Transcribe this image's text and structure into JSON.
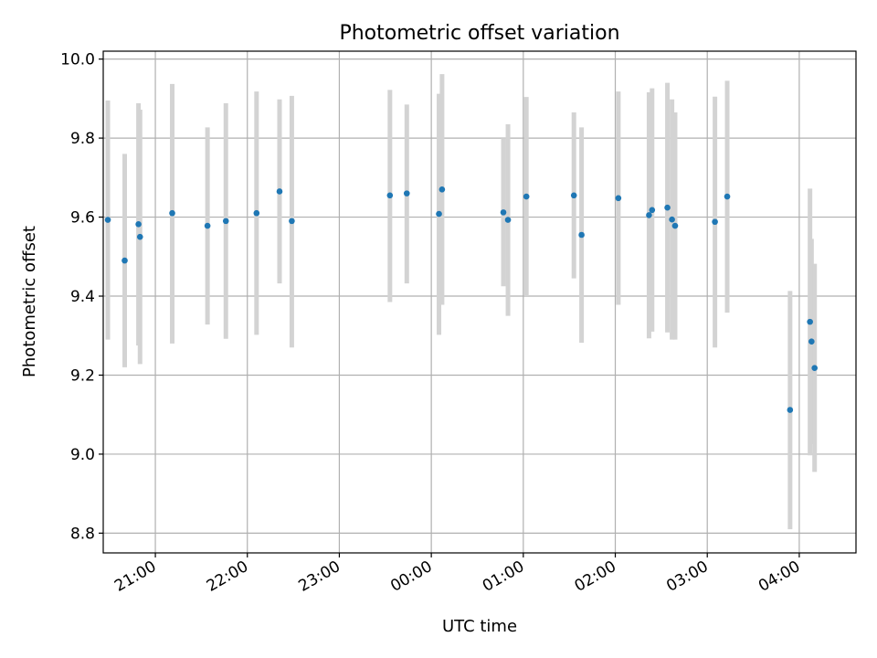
{
  "chart_data": {
    "type": "scatter",
    "title": "Photometric offset variation",
    "xlabel": "UTC time",
    "ylabel": "Photometric offset",
    "x_scale": "time",
    "x_range": [
      "20:26",
      "04:37"
    ],
    "ylim": [
      8.75,
      10.02
    ],
    "x_ticks": [
      "21:00",
      "22:00",
      "23:00",
      "00:00",
      "01:00",
      "02:00",
      "03:00",
      "04:00"
    ],
    "y_ticks": [
      "8.8",
      "9.0",
      "9.2",
      "9.4",
      "9.6",
      "9.8",
      "10.0"
    ],
    "grid": true,
    "point_color": "#1f77b4",
    "errorbar_color": "#d3d3d3",
    "points": [
      {
        "t": "20:29",
        "y": 9.593,
        "low": 9.29,
        "high": 9.895
      },
      {
        "t": "20:40",
        "y": 9.49,
        "low": 9.22,
        "high": 9.76
      },
      {
        "t": "20:49",
        "y": 9.582,
        "low": 9.275,
        "high": 9.888
      },
      {
        "t": "20:50",
        "y": 9.55,
        "low": 9.228,
        "high": 9.872
      },
      {
        "t": "21:11",
        "y": 9.61,
        "low": 9.28,
        "high": 9.937
      },
      {
        "t": "21:34",
        "y": 9.578,
        "low": 9.328,
        "high": 9.827
      },
      {
        "t": "21:46",
        "y": 9.59,
        "low": 9.292,
        "high": 9.888
      },
      {
        "t": "22:06",
        "y": 9.61,
        "low": 9.302,
        "high": 9.918
      },
      {
        "t": "22:21",
        "y": 9.665,
        "low": 9.432,
        "high": 9.898
      },
      {
        "t": "22:29",
        "y": 9.59,
        "low": 9.27,
        "high": 9.907
      },
      {
        "t": "23:33",
        "y": 9.655,
        "low": 9.385,
        "high": 9.922
      },
      {
        "t": "23:44",
        "y": 9.66,
        "low": 9.432,
        "high": 9.885
      },
      {
        "t": "00:05",
        "y": 9.608,
        "low": 9.302,
        "high": 9.912
      },
      {
        "t": "00:07",
        "y": 9.67,
        "low": 9.378,
        "high": 9.962
      },
      {
        "t": "00:47",
        "y": 9.612,
        "low": 9.425,
        "high": 9.8
      },
      {
        "t": "00:50",
        "y": 9.593,
        "low": 9.35,
        "high": 9.835
      },
      {
        "t": "01:02",
        "y": 9.652,
        "low": 9.4,
        "high": 9.904
      },
      {
        "t": "01:33",
        "y": 9.655,
        "low": 9.445,
        "high": 9.865
      },
      {
        "t": "01:38",
        "y": 9.555,
        "low": 9.282,
        "high": 9.827
      },
      {
        "t": "02:02",
        "y": 9.648,
        "low": 9.378,
        "high": 9.918
      },
      {
        "t": "02:22",
        "y": 9.605,
        "low": 9.293,
        "high": 9.916
      },
      {
        "t": "02:24",
        "y": 9.618,
        "low": 9.31,
        "high": 9.926
      },
      {
        "t": "02:34",
        "y": 9.624,
        "low": 9.308,
        "high": 9.94
      },
      {
        "t": "02:37",
        "y": 9.594,
        "low": 9.29,
        "high": 9.898
      },
      {
        "t": "02:39",
        "y": 9.578,
        "low": 9.29,
        "high": 9.865
      },
      {
        "t": "03:05",
        "y": 9.588,
        "low": 9.27,
        "high": 9.905
      },
      {
        "t": "03:13",
        "y": 9.652,
        "low": 9.358,
        "high": 9.945
      },
      {
        "t": "03:54",
        "y": 9.112,
        "low": 8.81,
        "high": 9.413
      },
      {
        "t": "04:07",
        "y": 9.335,
        "low": 8.997,
        "high": 9.672
      },
      {
        "t": "04:08",
        "y": 9.285,
        "low": 9.025,
        "high": 9.545
      },
      {
        "t": "04:10",
        "y": 9.218,
        "low": 8.955,
        "high": 9.482
      }
    ]
  }
}
